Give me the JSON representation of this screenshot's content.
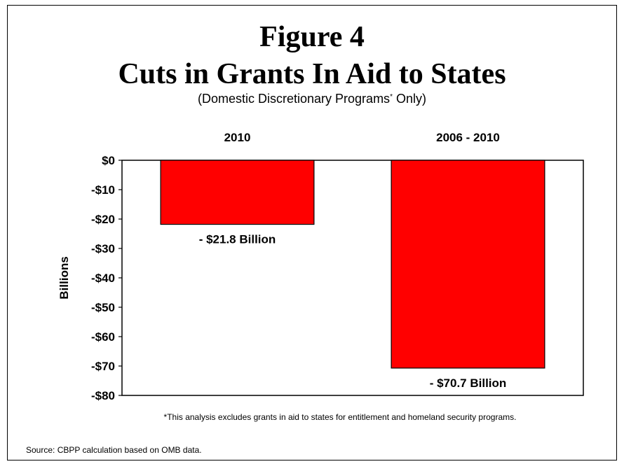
{
  "title_line1": "Figure 4",
  "title_line2": "Cuts in Grants In Aid to States",
  "subtitle_before": "(Domestic Discretionary Programs",
  "subtitle_sup": "*",
  "subtitle_after": " Only)",
  "footnote": "*This analysis excludes grants in aid to states for entitlement and homeland security programs.",
  "source": "Source:  CBPP calculation based on OMB data.",
  "colors": {
    "bar_fill": "#ff0000",
    "bar_stroke": "#000000"
  },
  "chart_data": {
    "type": "bar",
    "categories": [
      "2010",
      "2006 - 2010"
    ],
    "values": [
      -21.8,
      -70.7
    ],
    "data_labels": [
      "- $21.8 Billion",
      "- $70.7 Billion"
    ],
    "ylabel": "Billions",
    "xlabel": "",
    "ylim": [
      -80,
      0
    ],
    "yticks": [
      0,
      -10,
      -20,
      -30,
      -40,
      -50,
      -60,
      -70,
      -80
    ],
    "ytick_labels": [
      "$0",
      "-$10",
      "-$20",
      "-$30",
      "-$40",
      "-$50",
      "-$60",
      "-$70",
      "-$80"
    ],
    "category_labels_position": "top",
    "grid": false,
    "legend": "none"
  }
}
